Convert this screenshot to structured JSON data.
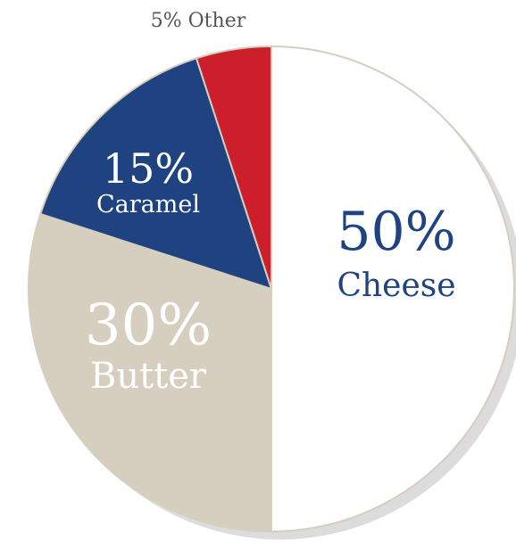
{
  "chart_data": {
    "type": "pie",
    "slices": [
      {
        "name": "Cheese",
        "value": 50,
        "pct_label": "50%",
        "name_label": "Cheese",
        "color": "#ffffff",
        "text_color": "#1f4280"
      },
      {
        "name": "Butter",
        "value": 30,
        "pct_label": "30%",
        "name_label": "Butter",
        "color": "#d6cebe",
        "text_color": "#ffffff"
      },
      {
        "name": "Caramel",
        "value": 15,
        "pct_label": "15%",
        "name_label": "Caramel",
        "color": "#1f4280",
        "text_color": "#ffffff"
      },
      {
        "name": "Other",
        "value": 5,
        "outside_label": "5% Other",
        "color": "#cc1f2b",
        "text_color": "#555555"
      }
    ],
    "edge_color": "#d6cebe",
    "shadow_color": "#dcdcdc"
  }
}
